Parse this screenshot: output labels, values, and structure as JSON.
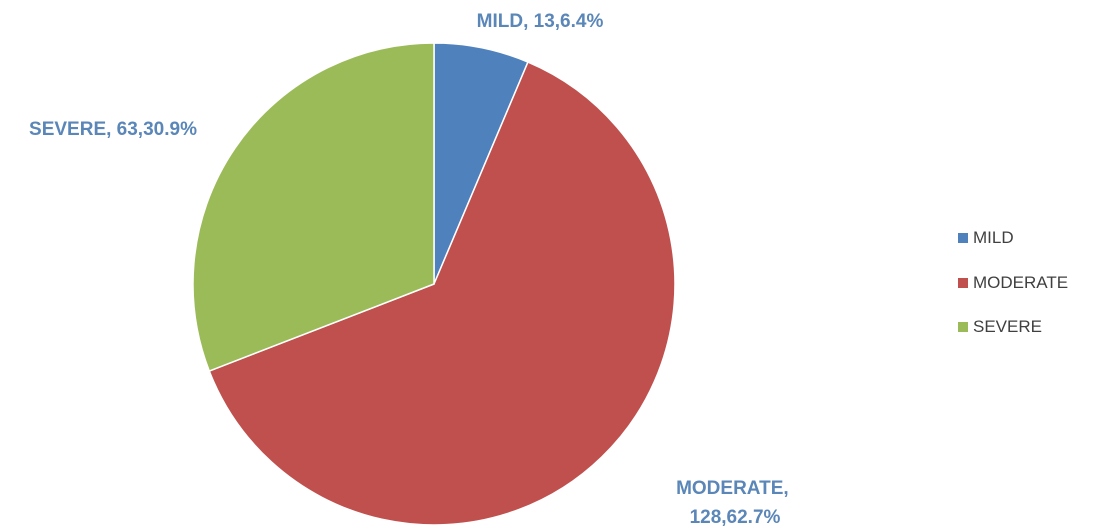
{
  "chart_data": {
    "type": "pie",
    "categories": [
      "MILD",
      "MODERATE",
      "SEVERE"
    ],
    "values": [
      13,
      128,
      63
    ],
    "percentages": [
      "6.4%",
      "62.7%",
      "30.9%"
    ],
    "colors": [
      "#4f81bd",
      "#c0504d",
      "#9bbb59"
    ],
    "data_labels": [
      "MILD, 13,6.4%",
      [
        "MODERATE,",
        "128,62.7%"
      ],
      "SEVERE, 63,30.9%"
    ],
    "label_color": "#5a86b8",
    "legend": {
      "placement": "right",
      "entries": [
        "MILD",
        "MODERATE",
        "SEVERE"
      ]
    },
    "title": "",
    "start_angle_deg": 0,
    "direction": "clockwise"
  }
}
